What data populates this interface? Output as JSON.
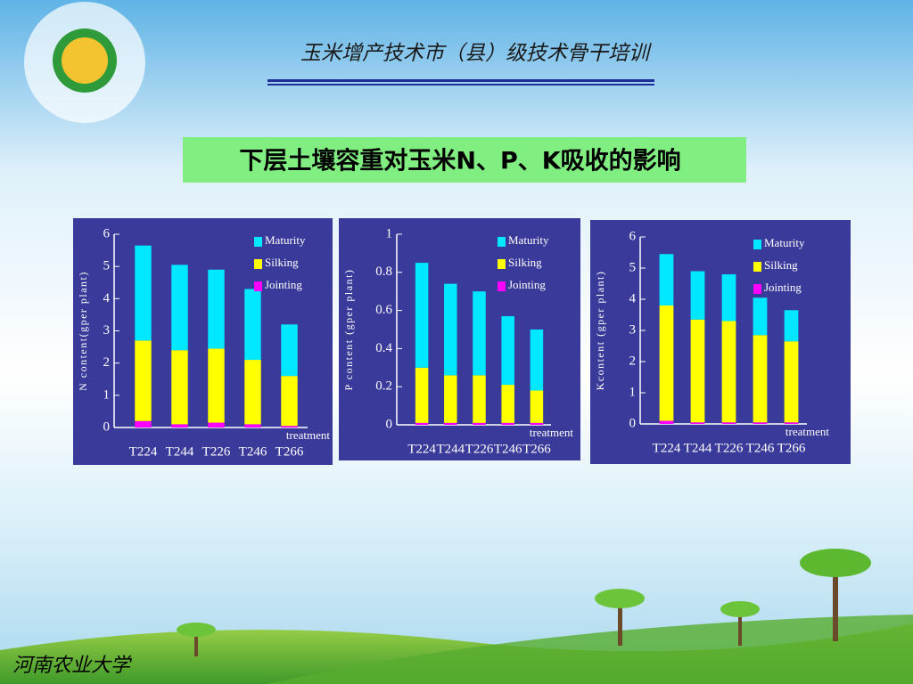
{
  "header": "玉米增产技术市（县）级技术骨干培训",
  "slide_title": "下层土壤容重对玉米N、P、K吸收的影响",
  "footer": "河南农业大学",
  "chart_data": [
    {
      "type": "bar",
      "stacked": true,
      "ylabel": "N content(gper plant)",
      "xlabel": "treatment",
      "categories": [
        "T224",
        "T244",
        "T226",
        "T246",
        "T266"
      ],
      "ylim": [
        0,
        6
      ],
      "yticks": [
        0,
        1,
        2,
        3,
        4,
        5,
        6
      ],
      "series": [
        {
          "name": "Maturity",
          "color": "#00e8ff",
          "values": [
            2.95,
            2.65,
            2.45,
            2.2,
            1.6
          ]
        },
        {
          "name": "Silking",
          "color": "#ffff00",
          "values": [
            2.5,
            2.3,
            2.3,
            2.0,
            1.55
          ]
        },
        {
          "name": "Jointing",
          "color": "#ff00ff",
          "values": [
            0.2,
            0.1,
            0.15,
            0.1,
            0.05
          ]
        }
      ]
    },
    {
      "type": "bar",
      "stacked": true,
      "ylabel": "P content (gper plant)",
      "xlabel": "treatment",
      "categories": [
        "T224",
        "T244",
        "T226",
        "T246",
        "T266"
      ],
      "ylim": [
        0,
        1
      ],
      "yticks": [
        0,
        0.2,
        0.4,
        0.6,
        0.8,
        1
      ],
      "series": [
        {
          "name": "Maturity",
          "color": "#00e8ff",
          "values": [
            0.55,
            0.48,
            0.44,
            0.36,
            0.32
          ]
        },
        {
          "name": "Silking",
          "color": "#ffff00",
          "values": [
            0.29,
            0.25,
            0.25,
            0.2,
            0.17
          ]
        },
        {
          "name": "Jointing",
          "color": "#ff00ff",
          "values": [
            0.01,
            0.01,
            0.01,
            0.01,
            0.01
          ]
        }
      ]
    },
    {
      "type": "bar",
      "stacked": true,
      "ylabel": "Kcontent (gper plant)",
      "xlabel": "treatment",
      "categories": [
        "T224",
        "T244",
        "T226",
        "T246",
        "T266"
      ],
      "ylim": [
        0,
        6
      ],
      "yticks": [
        0,
        1,
        2,
        3,
        4,
        5,
        6
      ],
      "series": [
        {
          "name": "Maturity",
          "color": "#00e8ff",
          "values": [
            1.65,
            1.55,
            1.5,
            1.2,
            1.0
          ]
        },
        {
          "name": "Silking",
          "color": "#ffff00",
          "values": [
            3.7,
            3.3,
            3.25,
            2.8,
            2.6
          ]
        },
        {
          "name": "Jointing",
          "color": "#ff00ff",
          "values": [
            0.1,
            0.05,
            0.05,
            0.05,
            0.05
          ]
        }
      ]
    }
  ]
}
